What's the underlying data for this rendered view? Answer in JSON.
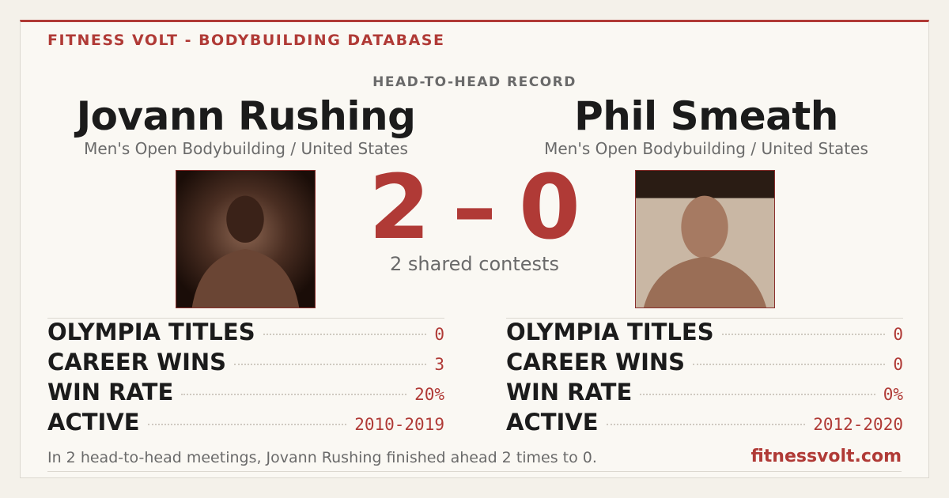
{
  "header": {
    "brand": "FITNESS VOLT - BODYBUILDING DATABASE",
    "section_label": "HEAD-TO-HEAD RECORD"
  },
  "athletes": [
    {
      "name": "Jovann Rushing",
      "division": "Men's Open Bodybuilding / United States",
      "stats": [
        {
          "label": "OLYMPIA TITLES",
          "value": "0"
        },
        {
          "label": "CAREER WINS",
          "value": "3"
        },
        {
          "label": "WIN RATE",
          "value": "20%"
        },
        {
          "label": "ACTIVE",
          "value": "2010-2019"
        }
      ]
    },
    {
      "name": "Phil Smeath",
      "division": "Men's Open Bodybuilding / United States",
      "stats": [
        {
          "label": "OLYMPIA TITLES",
          "value": "0"
        },
        {
          "label": "CAREER WINS",
          "value": "0"
        },
        {
          "label": "WIN RATE",
          "value": "0%"
        },
        {
          "label": "ACTIVE",
          "value": "2012-2020"
        }
      ]
    }
  ],
  "score": {
    "left": 2,
    "separator": "–",
    "right": 0,
    "caption": "2 shared contests"
  },
  "footer": {
    "summary": "In 2 head-to-head meetings, Jovann Rushing finished ahead 2 times to 0.",
    "link": "fitnessvolt.com"
  }
}
